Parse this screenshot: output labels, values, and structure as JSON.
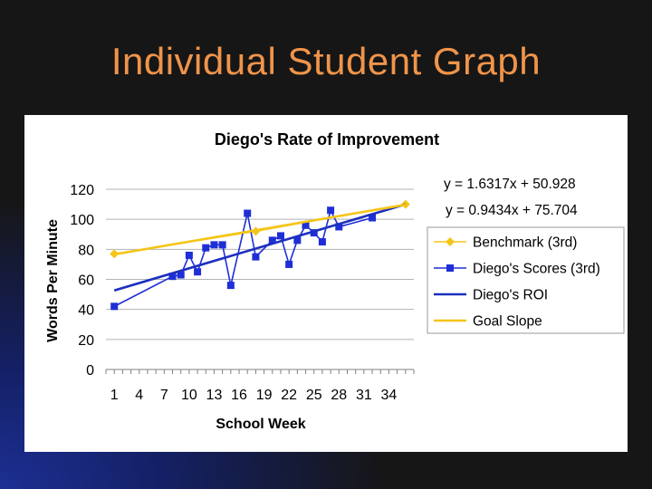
{
  "slide": {
    "title": "Individual Student Graph"
  },
  "chart_data": {
    "type": "line",
    "title": "Diego's Rate of Improvement",
    "xlabel": "School Week",
    "ylabel": "Words Per Minute",
    "xlim": [
      0,
      37
    ],
    "ylim": [
      0,
      120
    ],
    "x_ticks": [
      1,
      4,
      7,
      10,
      13,
      16,
      19,
      22,
      25,
      28,
      31,
      34
    ],
    "y_ticks": [
      0,
      20,
      40,
      60,
      80,
      100,
      120
    ],
    "grid": true,
    "legend_position": "right",
    "equations": [
      "y = 1.6317x + 50.928",
      "y = 0.9434x + 75.704"
    ],
    "series": [
      {
        "name": "Benchmark (3rd)",
        "color": "#f5c518",
        "marker": "diamond",
        "x": [
          1,
          18,
          36
        ],
        "y": [
          77,
          92,
          110
        ]
      },
      {
        "name": "Diego's Scores (3rd)",
        "color": "#1f2fd6",
        "marker": "square",
        "x": [
          1,
          8,
          9,
          10,
          11,
          12,
          13,
          14,
          15,
          17,
          18,
          20,
          21,
          22,
          23,
          24,
          25,
          26,
          27,
          28,
          32
        ],
        "y": [
          42,
          62,
          63,
          76,
          65,
          81,
          83,
          83,
          56,
          104,
          75,
          86,
          89,
          70,
          86,
          96,
          91,
          85,
          106,
          95,
          101
        ]
      },
      {
        "name": "Diego's ROI",
        "color": "#1b2fbf",
        "marker": "none",
        "x": [
          1,
          36
        ],
        "y": [
          52.6,
          110
        ]
      },
      {
        "name": "Goal Slope",
        "color": "#f5c518",
        "marker": "none",
        "x": [
          1,
          36
        ],
        "y": [
          76.6,
          109.7
        ]
      }
    ]
  }
}
